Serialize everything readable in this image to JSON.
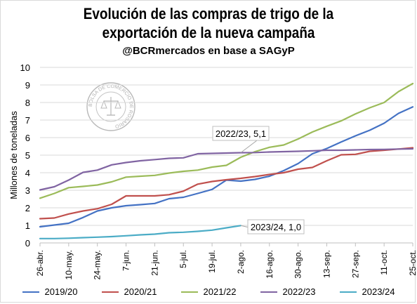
{
  "title_line1": "Evolución de las compras de trigo de la",
  "title_line2": "exportación de la nueva campaña",
  "subtitle": "@BCRmercados en base a SAGyP",
  "seal_text": "BOLSA DE COMERCIO DE ROSARIO",
  "chart_data": {
    "type": "line",
    "ylabel": "Millones de toneladas",
    "ylim": [
      0,
      10
    ],
    "yticks": [
      0,
      1,
      2,
      3,
      4,
      5,
      6,
      7,
      8,
      9,
      10
    ],
    "grid": true,
    "legend_position": "bottom",
    "x_tick_labels": [
      "26-abr.",
      "10-may.",
      "24-may.",
      "7-jun.",
      "21-jun.",
      "5-jul.",
      "19-jul.",
      "2-ago.",
      "16-ago.",
      "30-ago.",
      "13-sep.",
      "27-sep.",
      "11-oct.",
      "25-oct."
    ],
    "x_ticks_weeks": [
      0,
      2,
      4,
      6,
      8,
      10,
      12,
      14,
      16,
      18,
      20,
      22,
      24,
      26
    ],
    "x_max_weeks": 26,
    "series": [
      {
        "name": "2019/20",
        "color": "#4472C4",
        "values": [
          0.92,
          1.02,
          1.12,
          1.45,
          1.82,
          2.0,
          2.12,
          2.18,
          2.25,
          2.52,
          2.6,
          2.82,
          3.05,
          3.58,
          3.52,
          3.62,
          3.8,
          4.12,
          4.52,
          5.08,
          5.38,
          5.75,
          6.1,
          6.42,
          6.82,
          7.38,
          7.75
        ]
      },
      {
        "name": "2020/21",
        "color": "#C0504D",
        "values": [
          1.38,
          1.42,
          1.65,
          1.82,
          1.95,
          2.2,
          2.68,
          2.68,
          2.68,
          2.75,
          2.95,
          3.35,
          3.5,
          3.6,
          3.68,
          3.78,
          3.9,
          4.0,
          4.2,
          4.3,
          4.68,
          5.02,
          5.05,
          5.22,
          5.28,
          5.35,
          5.42
        ]
      },
      {
        "name": "2021/22",
        "color": "#9BBB59",
        "values": [
          2.55,
          2.82,
          3.15,
          3.22,
          3.3,
          3.48,
          3.75,
          3.8,
          3.85,
          3.98,
          4.08,
          4.15,
          4.32,
          4.42,
          4.88,
          5.2,
          5.45,
          5.58,
          5.92,
          6.32,
          6.65,
          6.95,
          7.35,
          7.7,
          8.0,
          8.62,
          9.08
        ]
      },
      {
        "name": "2022/23",
        "color": "#8064A2",
        "values": [
          3.02,
          3.2,
          3.58,
          4.02,
          4.15,
          4.45,
          4.58,
          4.68,
          4.75,
          4.82,
          4.85,
          5.08,
          5.1,
          5.12,
          5.14,
          5.15,
          5.18,
          5.2,
          5.22,
          5.25,
          5.28,
          5.28,
          5.3,
          5.32,
          5.33,
          5.35,
          5.36
        ]
      },
      {
        "name": "2023/24",
        "color": "#4BACC6",
        "values": [
          0.25,
          0.25,
          0.27,
          0.3,
          0.33,
          0.36,
          0.41,
          0.46,
          0.5,
          0.58,
          0.61,
          0.66,
          0.73,
          0.86,
          0.99
        ]
      }
    ],
    "annotations": [
      {
        "text": "2022/23, 5,1",
        "series": "2022/23",
        "at_week": 14
      },
      {
        "text": "2023/24, 1,0",
        "series": "2023/24",
        "at_week": 14
      }
    ]
  }
}
